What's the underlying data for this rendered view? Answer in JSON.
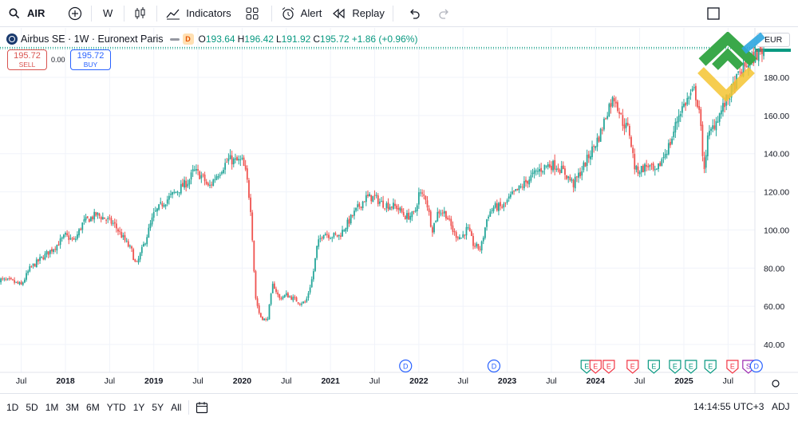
{
  "toolbar": {
    "symbol": "AIR",
    "interval": "W",
    "indicators_label": "Indicators",
    "alert_label": "Alert",
    "replay_label": "Replay"
  },
  "legend": {
    "title": "Airbus SE · 1W · Euronext Paris",
    "badge": "D",
    "open_key": "O",
    "open": "193.64",
    "high_key": "H",
    "high": "196.42",
    "low_key": "L",
    "low": "191.92",
    "close_key": "C",
    "close": "195.72",
    "change": "+1.86 (+0.96%)"
  },
  "trade": {
    "sell_price": "195.72",
    "sell_label": "SELL",
    "spread": "0.00",
    "buy_price": "195.72",
    "buy_label": "BUY"
  },
  "currency": "EUR",
  "bottom": {
    "ranges": [
      "1D",
      "5D",
      "1M",
      "3M",
      "6M",
      "YTD",
      "1Y",
      "5Y",
      "All"
    ],
    "time": "14:14:55 UTC+3",
    "adj": "ADJ"
  },
  "colors": {
    "up": "#26a69a",
    "down": "#ef5350",
    "grid": "#f0f3fa",
    "dividend": "#2962ff",
    "earnings": "#f23645",
    "earnings_alt": "#089981",
    "logo_green": "#3aa84a",
    "logo_yellow": "#f5c431",
    "logo_blue": "#2ea7e0"
  },
  "chart_data": {
    "type": "candlestick",
    "interval": "1W",
    "ylim": [
      35,
      205
    ],
    "y_ticks": [
      40,
      60,
      80,
      100,
      120,
      140,
      160,
      180
    ],
    "y_tick_labels": [
      "40.00",
      "60.00",
      "80.00",
      "100.00",
      "120.00",
      "140.00",
      "160.00",
      "180.00"
    ],
    "x_ticks": [
      "Jul",
      "2018",
      "Jul",
      "2019",
      "Jul",
      "2020",
      "Jul",
      "2021",
      "Jul",
      "2022",
      "Jul",
      "2023",
      "Jul",
      "2024",
      "Jul",
      "2025",
      "Jul"
    ],
    "x_range": [
      2017.25,
      2025.95
    ],
    "x_tick_dates": [
      2017.5,
      2018.0,
      2018.5,
      2019.0,
      2019.5,
      2020.0,
      2020.5,
      2021.0,
      2021.5,
      2022.0,
      2022.5,
      2023.0,
      2023.5,
      2024.0,
      2024.5,
      2025.0,
      2025.5
    ],
    "grid": true,
    "last_price": 195.72,
    "price_path": [
      [
        2017.25,
        74
      ],
      [
        2017.4,
        73
      ],
      [
        2017.5,
        71
      ],
      [
        2017.6,
        80
      ],
      [
        2017.75,
        86
      ],
      [
        2017.9,
        92
      ],
      [
        2018.0,
        97
      ],
      [
        2018.1,
        94
      ],
      [
        2018.2,
        104
      ],
      [
        2018.35,
        108
      ],
      [
        2018.45,
        106
      ],
      [
        2018.55,
        103
      ],
      [
        2018.65,
        96
      ],
      [
        2018.75,
        89
      ],
      [
        2018.8,
        81
      ],
      [
        2018.9,
        94
      ],
      [
        2019.0,
        108
      ],
      [
        2019.1,
        114
      ],
      [
        2019.2,
        118
      ],
      [
        2019.3,
        122
      ],
      [
        2019.4,
        126
      ],
      [
        2019.45,
        131
      ],
      [
        2019.55,
        128
      ],
      [
        2019.62,
        122
      ],
      [
        2019.7,
        128
      ],
      [
        2019.78,
        133
      ],
      [
        2019.85,
        137
      ],
      [
        2019.92,
        136
      ],
      [
        2020.0,
        136
      ],
      [
        2020.05,
        128
      ],
      [
        2020.1,
        110
      ],
      [
        2020.15,
        65
      ],
      [
        2020.2,
        55
      ],
      [
        2020.28,
        52
      ],
      [
        2020.35,
        72
      ],
      [
        2020.42,
        64
      ],
      [
        2020.5,
        66
      ],
      [
        2020.58,
        64
      ],
      [
        2020.65,
        62
      ],
      [
        2020.72,
        62
      ],
      [
        2020.8,
        76
      ],
      [
        2020.85,
        92
      ],
      [
        2020.92,
        99
      ],
      [
        2021.0,
        97
      ],
      [
        2021.1,
        97
      ],
      [
        2021.2,
        104
      ],
      [
        2021.3,
        111
      ],
      [
        2021.4,
        117
      ],
      [
        2021.5,
        117
      ],
      [
        2021.58,
        114
      ],
      [
        2021.65,
        113
      ],
      [
        2021.75,
        112
      ],
      [
        2021.85,
        107
      ],
      [
        2021.95,
        108
      ],
      [
        2022.0,
        119
      ],
      [
        2022.08,
        117
      ],
      [
        2022.15,
        100
      ],
      [
        2022.22,
        110
      ],
      [
        2022.3,
        109
      ],
      [
        2022.4,
        98
      ],
      [
        2022.48,
        96
      ],
      [
        2022.55,
        101
      ],
      [
        2022.62,
        92
      ],
      [
        2022.7,
        90
      ],
      [
        2022.78,
        108
      ],
      [
        2022.85,
        112
      ],
      [
        2022.95,
        112
      ],
      [
        2023.05,
        118
      ],
      [
        2023.15,
        122
      ],
      [
        2023.25,
        127
      ],
      [
        2023.35,
        131
      ],
      [
        2023.45,
        134
      ],
      [
        2023.55,
        134
      ],
      [
        2023.65,
        130
      ],
      [
        2023.75,
        124
      ],
      [
        2023.85,
        132
      ],
      [
        2023.95,
        141
      ],
      [
        2024.05,
        150
      ],
      [
        2024.15,
        165
      ],
      [
        2024.22,
        170
      ],
      [
        2024.3,
        157
      ],
      [
        2024.38,
        152
      ],
      [
        2024.45,
        131
      ],
      [
        2024.52,
        132
      ],
      [
        2024.6,
        134
      ],
      [
        2024.68,
        129
      ],
      [
        2024.75,
        137
      ],
      [
        2024.85,
        146
      ],
      [
        2024.95,
        162
      ],
      [
        2025.05,
        169
      ],
      [
        2025.12,
        173
      ],
      [
        2025.18,
        162
      ],
      [
        2025.22,
        130
      ],
      [
        2025.27,
        148
      ],
      [
        2025.35,
        156
      ],
      [
        2025.45,
        165
      ],
      [
        2025.55,
        174
      ],
      [
        2025.62,
        181
      ],
      [
        2025.7,
        186
      ],
      [
        2025.78,
        190
      ],
      [
        2025.85,
        193
      ],
      [
        2025.92,
        195.72
      ]
    ],
    "events": [
      {
        "type": "dividend",
        "label": "D",
        "date": 2021.85
      },
      {
        "type": "dividend",
        "label": "D",
        "date": 2022.85
      },
      {
        "type": "earnings",
        "label": "E",
        "date": 2023.9
      },
      {
        "type": "earnings",
        "label": "E",
        "date": 2024.0
      },
      {
        "type": "earnings",
        "label": "E",
        "date": 2024.15
      },
      {
        "type": "earnings",
        "label": "E",
        "date": 2024.42
      },
      {
        "type": "earnings",
        "label": "E",
        "date": 2024.66
      },
      {
        "type": "earnings",
        "label": "E",
        "date": 2024.9
      },
      {
        "type": "earnings",
        "label": "E",
        "date": 2025.08
      },
      {
        "type": "earnings",
        "label": "E",
        "date": 2025.3
      },
      {
        "type": "earnings",
        "label": "E",
        "date": 2025.55
      },
      {
        "type": "split",
        "label": "S",
        "date": 2025.73
      },
      {
        "type": "dividend",
        "label": "D",
        "date": 2025.82
      }
    ]
  }
}
